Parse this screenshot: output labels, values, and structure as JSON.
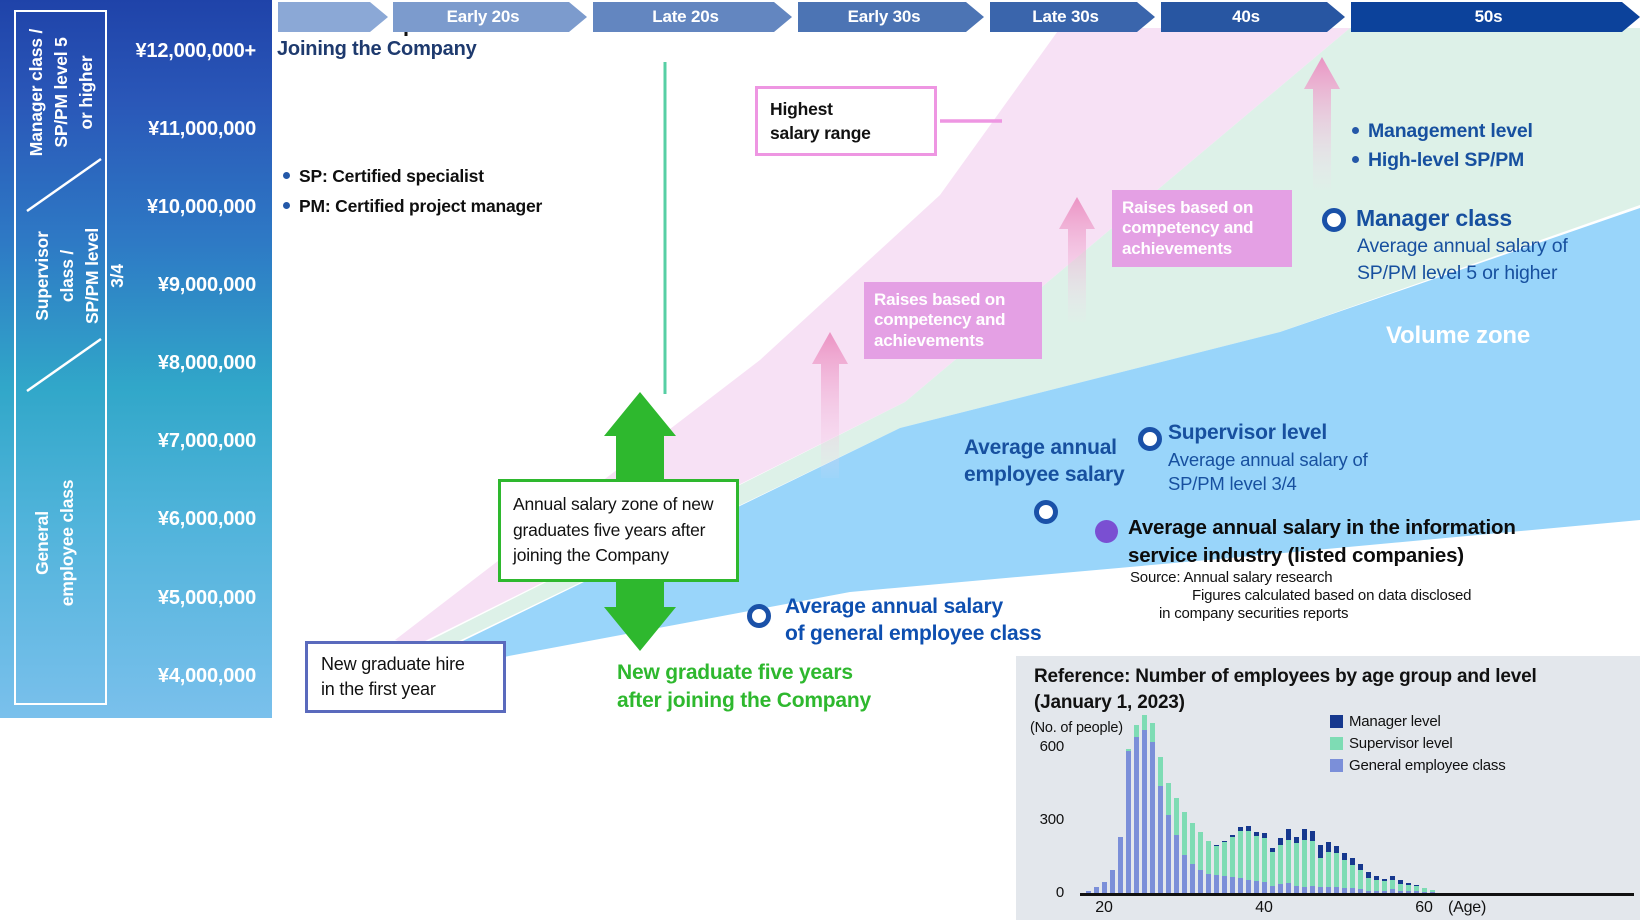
{
  "colors": {
    "zone_pink": "#f7e1f5",
    "zone_mint": "#ddf1e8",
    "zone_blue": "#99d5fa",
    "stage_colors": [
      "#8BA8D6",
      "#7C9BCD",
      "#6386C0",
      "#4C74B4",
      "#3A65AC",
      "#2856A2",
      "#0C429B"
    ],
    "accent_green": "#2eb82e",
    "accent_pink": "#ee96e2",
    "marker_blue": "#1a51a8",
    "industry_purple": "#7a4fd2"
  },
  "sidebar": {
    "classes": [
      "Manager class /\nSP/PM level 5\nor higher",
      "Supervisor class /\nSP/PM level 3/4",
      "General\nemployee class"
    ],
    "salary_ticks": [
      "¥12,000,000+",
      "¥11,000,000",
      "¥10,000,000",
      "¥9,000,000",
      "¥8,000,000",
      "¥7,000,000",
      "¥6,000,000",
      "¥5,000,000",
      "¥4,000,000"
    ]
  },
  "timeline": {
    "joining_label": "Joining the Company",
    "stages": [
      "",
      "Early 20s",
      "Late 20s",
      "Early 30s",
      "Late 30s",
      "40s",
      "50s"
    ]
  },
  "notes": {
    "sp": "SP: Certified specialist",
    "pm": "PM: Certified project manager"
  },
  "zones": {
    "volume_label": "Volume zone"
  },
  "callouts": {
    "highest": "Highest\nsalary range",
    "raises": "Raises based on\ncompetency and\nachievements",
    "salary_zone_box": "Annual salary zone of new\ngraduates five years after\njoining the Company",
    "new_grad_box": "New graduate hire\nin the first year",
    "new_grad_5yr": "New graduate five years\nafter joining the Company"
  },
  "levels": {
    "management_bullets": [
      "Management level",
      "High-level SP/PM"
    ],
    "manager": {
      "title": "Manager class",
      "desc": "Average annual salary of\nSP/PM level 5 or higher"
    },
    "supervisor": {
      "title": "Supervisor level",
      "desc": "Average annual salary of\nSP/PM level 3/4"
    },
    "avg_employee": "Average annual\nemployee salary",
    "general": "Average annual salary\nof general employee class",
    "industry": {
      "title": "Average annual salary in the information\nservice industry (listed companies)",
      "source_line1": "Source: Annual salary research",
      "source_line2": "Figures calculated based on data disclosed",
      "source_line3": "in company securities reports"
    }
  },
  "reference": {
    "title": "Reference: Number of employees by age group and level\n(January 1, 2023)",
    "y_unit": "(No. of people)",
    "x_unit": "(Age)",
    "yticks": [
      "600",
      "300",
      "0"
    ],
    "xticks": [
      "20",
      "40",
      "60"
    ]
  },
  "chart_data": {
    "type": "bar",
    "stacked": true,
    "title": "Reference: Number of employees by age group and level (January 1, 2023)",
    "xlabel": "(Age)",
    "ylabel": "(No. of people)",
    "ylim": [
      0,
      750
    ],
    "yticks": [
      0,
      300,
      600
    ],
    "xticks": [
      20,
      40,
      60
    ],
    "ages": [
      18,
      19,
      20,
      21,
      22,
      23,
      24,
      25,
      26,
      27,
      28,
      29,
      30,
      31,
      32,
      33,
      34,
      35,
      36,
      37,
      38,
      39,
      40,
      41,
      42,
      43,
      44,
      45,
      46,
      47,
      48,
      49,
      50,
      51,
      52,
      53,
      54,
      55,
      56,
      57,
      58,
      59,
      60,
      61
    ],
    "series": [
      {
        "name": "General employee class",
        "color": "#7b8fd9",
        "values": [
          10,
          25,
          45,
          95,
          230,
          585,
          640,
          670,
          620,
          440,
          320,
          240,
          155,
          120,
          95,
          80,
          75,
          70,
          65,
          60,
          55,
          50,
          45,
          30,
          35,
          40,
          30,
          25,
          30,
          25,
          25,
          25,
          20,
          20,
          15,
          10,
          10,
          10,
          15,
          10,
          10,
          10,
          5,
          5
        ]
      },
      {
        "name": "Supervisor level",
        "color": "#7edcb4",
        "values": [
          0,
          0,
          0,
          0,
          0,
          10,
          50,
          60,
          80,
          120,
          130,
          150,
          175,
          170,
          155,
          135,
          120,
          140,
          165,
          195,
          200,
          185,
          180,
          140,
          160,
          175,
          175,
          195,
          185,
          120,
          145,
          140,
          115,
          95,
          80,
          55,
          45,
          40,
          35,
          30,
          25,
          20,
          15,
          8
        ]
      },
      {
        "name": "Manager level",
        "color": "#16388e",
        "values": [
          0,
          0,
          0,
          0,
          0,
          0,
          0,
          0,
          0,
          0,
          0,
          0,
          0,
          0,
          0,
          0,
          5,
          5,
          10,
          15,
          20,
          15,
          20,
          15,
          30,
          45,
          25,
          45,
          40,
          55,
          40,
          30,
          30,
          30,
          25,
          25,
          15,
          10,
          15,
          15,
          8,
          3,
          0,
          0
        ]
      }
    ]
  }
}
